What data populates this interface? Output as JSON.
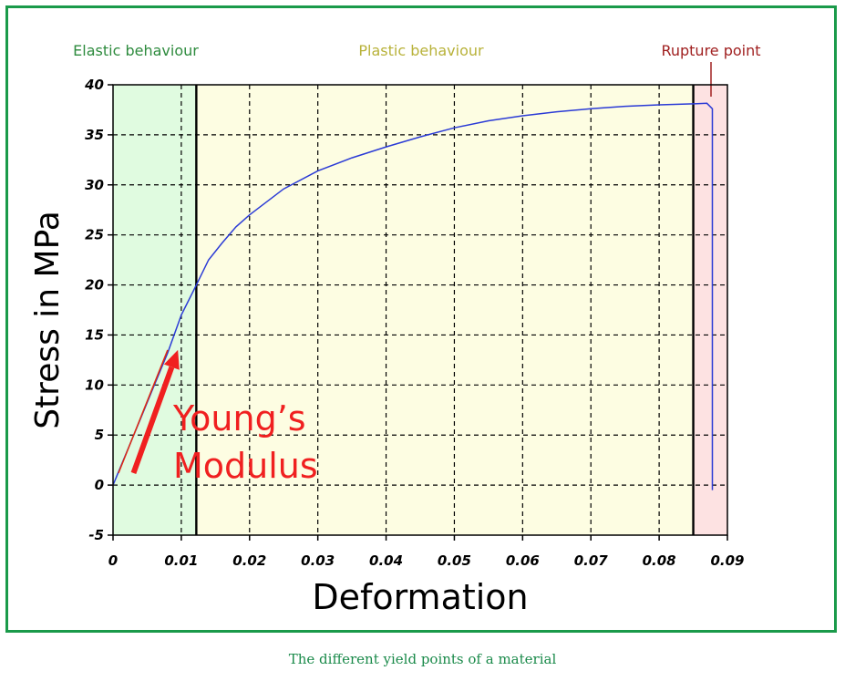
{
  "caption": "The different yield points of a material",
  "chart_data": {
    "type": "line",
    "xlabel": "Deformation",
    "ylabel": "Stress in MPa",
    "xlim": [
      0,
      0.09
    ],
    "ylim": [
      -5,
      40
    ],
    "x_ticks": [
      "0",
      "0.01",
      "0.02",
      "0.03",
      "0.04",
      "0.05",
      "0.06",
      "0.07",
      "0.08",
      "0.09"
    ],
    "y_ticks": [
      "40",
      "35",
      "30",
      "25",
      "20",
      "15",
      "10",
      "5",
      "0",
      "-5"
    ],
    "grid": true,
    "regions": [
      {
        "label": "Elastic behaviour",
        "x_range": [
          0,
          0.0122
        ],
        "fill": "#e0fbe0",
        "label_color": "#2e8b3e"
      },
      {
        "label": "Plastic behaviour",
        "x_range": [
          0.0122,
          0.085
        ],
        "fill": "#fdfde2",
        "label_color": "#b8b23a"
      },
      {
        "label": "Rupture point",
        "x_range": [
          0.085,
          0.09
        ],
        "fill": "#fde2e2",
        "label_color": "#a02020"
      }
    ],
    "boundaries": [
      0.0122,
      0.085
    ],
    "curve": {
      "color": "#2b3bd6",
      "points": [
        [
          0,
          0
        ],
        [
          0.002,
          3.3
        ],
        [
          0.004,
          6.6
        ],
        [
          0.006,
          9.9
        ],
        [
          0.008,
          13.2
        ],
        [
          0.01,
          17.0
        ],
        [
          0.0122,
          20.0
        ],
        [
          0.014,
          22.5
        ],
        [
          0.016,
          24.2
        ],
        [
          0.018,
          25.8
        ],
        [
          0.02,
          27.0
        ],
        [
          0.025,
          29.6
        ],
        [
          0.03,
          31.4
        ],
        [
          0.035,
          32.7
        ],
        [
          0.04,
          33.8
        ],
        [
          0.045,
          34.8
        ],
        [
          0.05,
          35.7
        ],
        [
          0.055,
          36.4
        ],
        [
          0.06,
          36.9
        ],
        [
          0.065,
          37.3
        ],
        [
          0.07,
          37.6
        ],
        [
          0.075,
          37.85
        ],
        [
          0.08,
          38.0
        ],
        [
          0.085,
          38.1
        ],
        [
          0.087,
          38.15
        ],
        [
          0.0878,
          37.6
        ],
        [
          0.0878,
          -0.5
        ]
      ]
    },
    "tangent": {
      "color": "#e02a10",
      "from": [
        0.0008,
        1.2
      ],
      "to": [
        0.008,
        13.5
      ]
    },
    "annotation": {
      "lines": [
        "Young’s",
        "Modulus"
      ],
      "color": "#f02020",
      "arrow_from": [
        0.003,
        1.2
      ],
      "arrow_to": [
        0.0095,
        13.5
      ]
    }
  },
  "colors": {
    "frame": "#1a9a4a",
    "caption": "#1a8a4a"
  }
}
